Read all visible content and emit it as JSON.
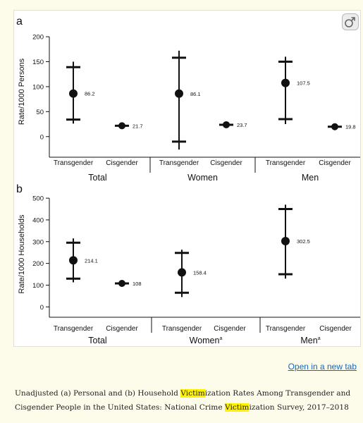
{
  "chart_data": [
    {
      "panel": "a",
      "type": "scatter",
      "error_bars": true,
      "ylabel": "Rate/1000 Persons",
      "yticks": [
        0,
        50,
        100,
        150,
        200
      ],
      "ylim": [
        -30,
        210
      ],
      "groups": [
        {
          "label": "Total",
          "points": [
            {
              "category": "Transgender",
              "value": 86.2,
              "label": "86.2",
              "low": 34,
              "high": 139,
              "cap_low": 26,
              "cap_high": 150
            },
            {
              "category": "Cisgender",
              "value": 21.7,
              "label": "21.7",
              "low": 21.7,
              "high": 21.7
            }
          ]
        },
        {
          "label": "Women",
          "points": [
            {
              "category": "Transgender",
              "value": 86.1,
              "label": "86.1",
              "low": -10,
              "high": 158,
              "cap_low": -26,
              "cap_high": 172
            },
            {
              "category": "Cisgender",
              "value": 23.7,
              "label": "23.7",
              "low": 23.7,
              "high": 23.7
            }
          ]
        },
        {
          "label": "Men",
          "points": [
            {
              "category": "Transgender",
              "value": 107.5,
              "label": "107.5",
              "low": 35,
              "high": 150,
              "cap_low": 25,
              "cap_high": 160
            },
            {
              "category": "Cisgender",
              "value": 19.8,
              "label": "19.8",
              "low": 19.8,
              "high": 19.8
            }
          ]
        }
      ]
    },
    {
      "panel": "b",
      "type": "scatter",
      "error_bars": true,
      "ylabel": "Rate/1000 Households",
      "yticks": [
        0,
        100,
        200,
        300,
        400,
        500
      ],
      "ylim": [
        -25,
        510
      ],
      "groups": [
        {
          "label": "Total",
          "points": [
            {
              "category": "Transgender",
              "value": 214.1,
              "label": "214.1",
              "low": 130,
              "high": 295,
              "cap_low": 113,
              "cap_high": 315
            },
            {
              "category": "Cisgender",
              "value": 108,
              "label": "108",
              "low": 108,
              "high": 108
            }
          ]
        },
        {
          "label": "Women",
          "label_sup": "a",
          "points": [
            {
              "category": "Transgender",
              "value": 158.4,
              "label": "158.4",
              "low": 65,
              "high": 248,
              "cap_low": 45,
              "cap_high": 263
            },
            {
              "category": "Cisgender",
              "value": null,
              "label": ""
            }
          ]
        },
        {
          "label": "Men",
          "label_sup": "a",
          "points": [
            {
              "category": "Transgender",
              "value": 302.5,
              "label": "302.5",
              "low": 150,
              "high": 450,
              "cap_low": 130,
              "cap_high": 470
            },
            {
              "category": "Cisgender",
              "value": null,
              "label": ""
            }
          ]
        }
      ]
    }
  ],
  "link_text": "Open in a new tab",
  "caption": {
    "segments": [
      {
        "text": "Unadjusted (a) Personal and (b) Household "
      },
      {
        "text": "Victim",
        "highlight": true
      },
      {
        "text": "ization Rates Among Transgender and Cisgender People in the United States: National Crime "
      },
      {
        "text": "Victim",
        "highlight": true
      },
      {
        "text": "ization Survey, 2017–2018"
      }
    ]
  },
  "colors": {
    "ink": "#111111",
    "highlight": "#fff200",
    "link": "#1a66b3",
    "page_bg": "#fdfbea"
  },
  "icons": {
    "expand": "expand-figure-icon"
  }
}
